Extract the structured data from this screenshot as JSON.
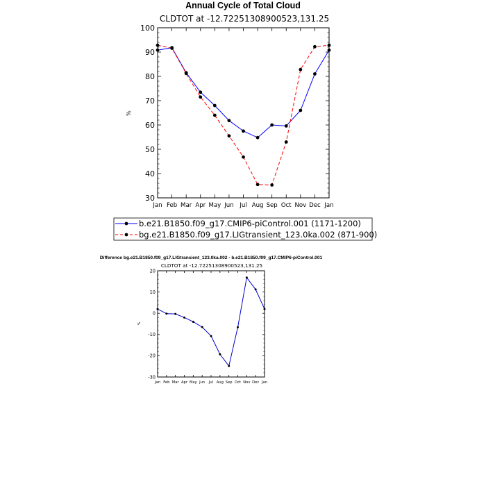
{
  "colors": {
    "ctrl": "#0000ff",
    "lig": "#ff0000",
    "diff": "#0000cc",
    "axis": "#000000"
  },
  "chart_data": [
    {
      "type": "line",
      "title": "Annual Cycle of Total Cloud",
      "subtitle": "CLDTOT at -12.72251308900523,131.25",
      "ylabel": "%",
      "xlabel": "",
      "ylim": [
        30,
        100
      ],
      "yticks": [
        30,
        40,
        50,
        60,
        70,
        80,
        90,
        100
      ],
      "categories": [
        "Jan",
        "Feb",
        "Mar",
        "Apr",
        "May",
        "Jun",
        "Jul",
        "Aug",
        "Sep",
        "Oct",
        "Nov",
        "Dec",
        "Jan"
      ],
      "legend_position": "bottom",
      "series": [
        {
          "name": "b.e21.B1850.f09_g17.CMIP6-piControl.001 (1171-1200)",
          "style": "solid",
          "color": "#0000ff",
          "values": [
            90.8,
            91.8,
            81.5,
            73.5,
            68.0,
            61.8,
            57.5,
            54.8,
            60.0,
            59.6,
            66.0,
            81.0,
            90.8
          ]
        },
        {
          "name": "bg.e21.B1850.f09_g17.LIGtransient_123.0ka.002 (871-900)",
          "style": "dashed",
          "color": "#ff0000",
          "values": [
            92.8,
            91.6,
            81.2,
            71.5,
            64.0,
            55.5,
            46.8,
            35.5,
            35.3,
            53.0,
            82.8,
            92.2,
            92.8
          ]
        }
      ]
    },
    {
      "type": "line",
      "title": "Difference bg.e21.B1850.f09_g17.LIGtransient_123.0ka.002 - b.e21.B1850.f09_g17.CMIP6-piControl.001",
      "subtitle": "CLDTOT at -12.72251308900523,131.25",
      "ylabel": "%",
      "xlabel": "",
      "ylim": [
        -30,
        20
      ],
      "yticks": [
        -30,
        -20,
        -10,
        0,
        10,
        20
      ],
      "categories": [
        "Jan",
        "Feb",
        "Mar",
        "Apr",
        "May",
        "Jun",
        "Jul",
        "Aug",
        "Sep",
        "Oct",
        "Nov",
        "Dec",
        "Jan"
      ],
      "series": [
        {
          "name": "difference",
          "style": "solid",
          "color": "#0000cc",
          "values": [
            2.0,
            -0.2,
            -0.3,
            -2.0,
            -4.0,
            -6.5,
            -10.7,
            -19.3,
            -24.8,
            -6.6,
            16.8,
            11.2,
            2.0
          ]
        }
      ]
    }
  ]
}
